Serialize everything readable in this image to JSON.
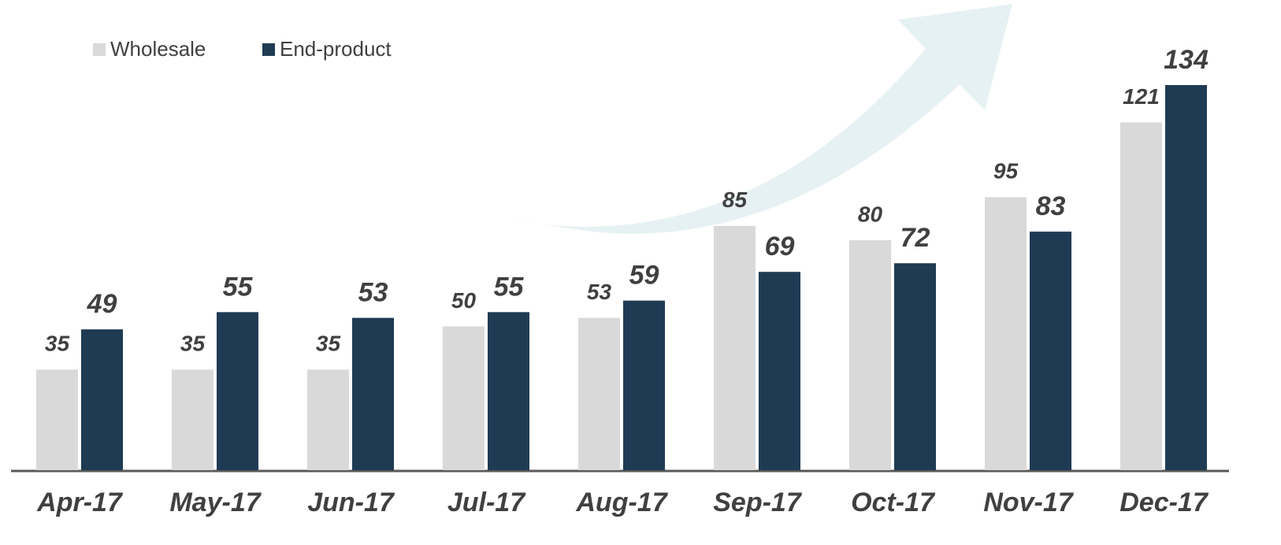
{
  "chart_data": {
    "type": "bar",
    "categories": [
      "Apr-17",
      "May-17",
      "Jun-17",
      "Jul-17",
      "Aug-17",
      "Sep-17",
      "Oct-17",
      "Nov-17",
      "Dec-17"
    ],
    "series": [
      {
        "name": "Wholesale",
        "color": "#d9d9d9",
        "values": [
          35,
          35,
          35,
          50,
          53,
          85,
          80,
          95,
          121
        ]
      },
      {
        "name": "End-product",
        "color": "#1f3b54",
        "values": [
          49,
          55,
          53,
          55,
          59,
          69,
          72,
          83,
          134
        ]
      }
    ],
    "ylim": [
      0,
      134
    ],
    "legend": "top-left"
  }
}
